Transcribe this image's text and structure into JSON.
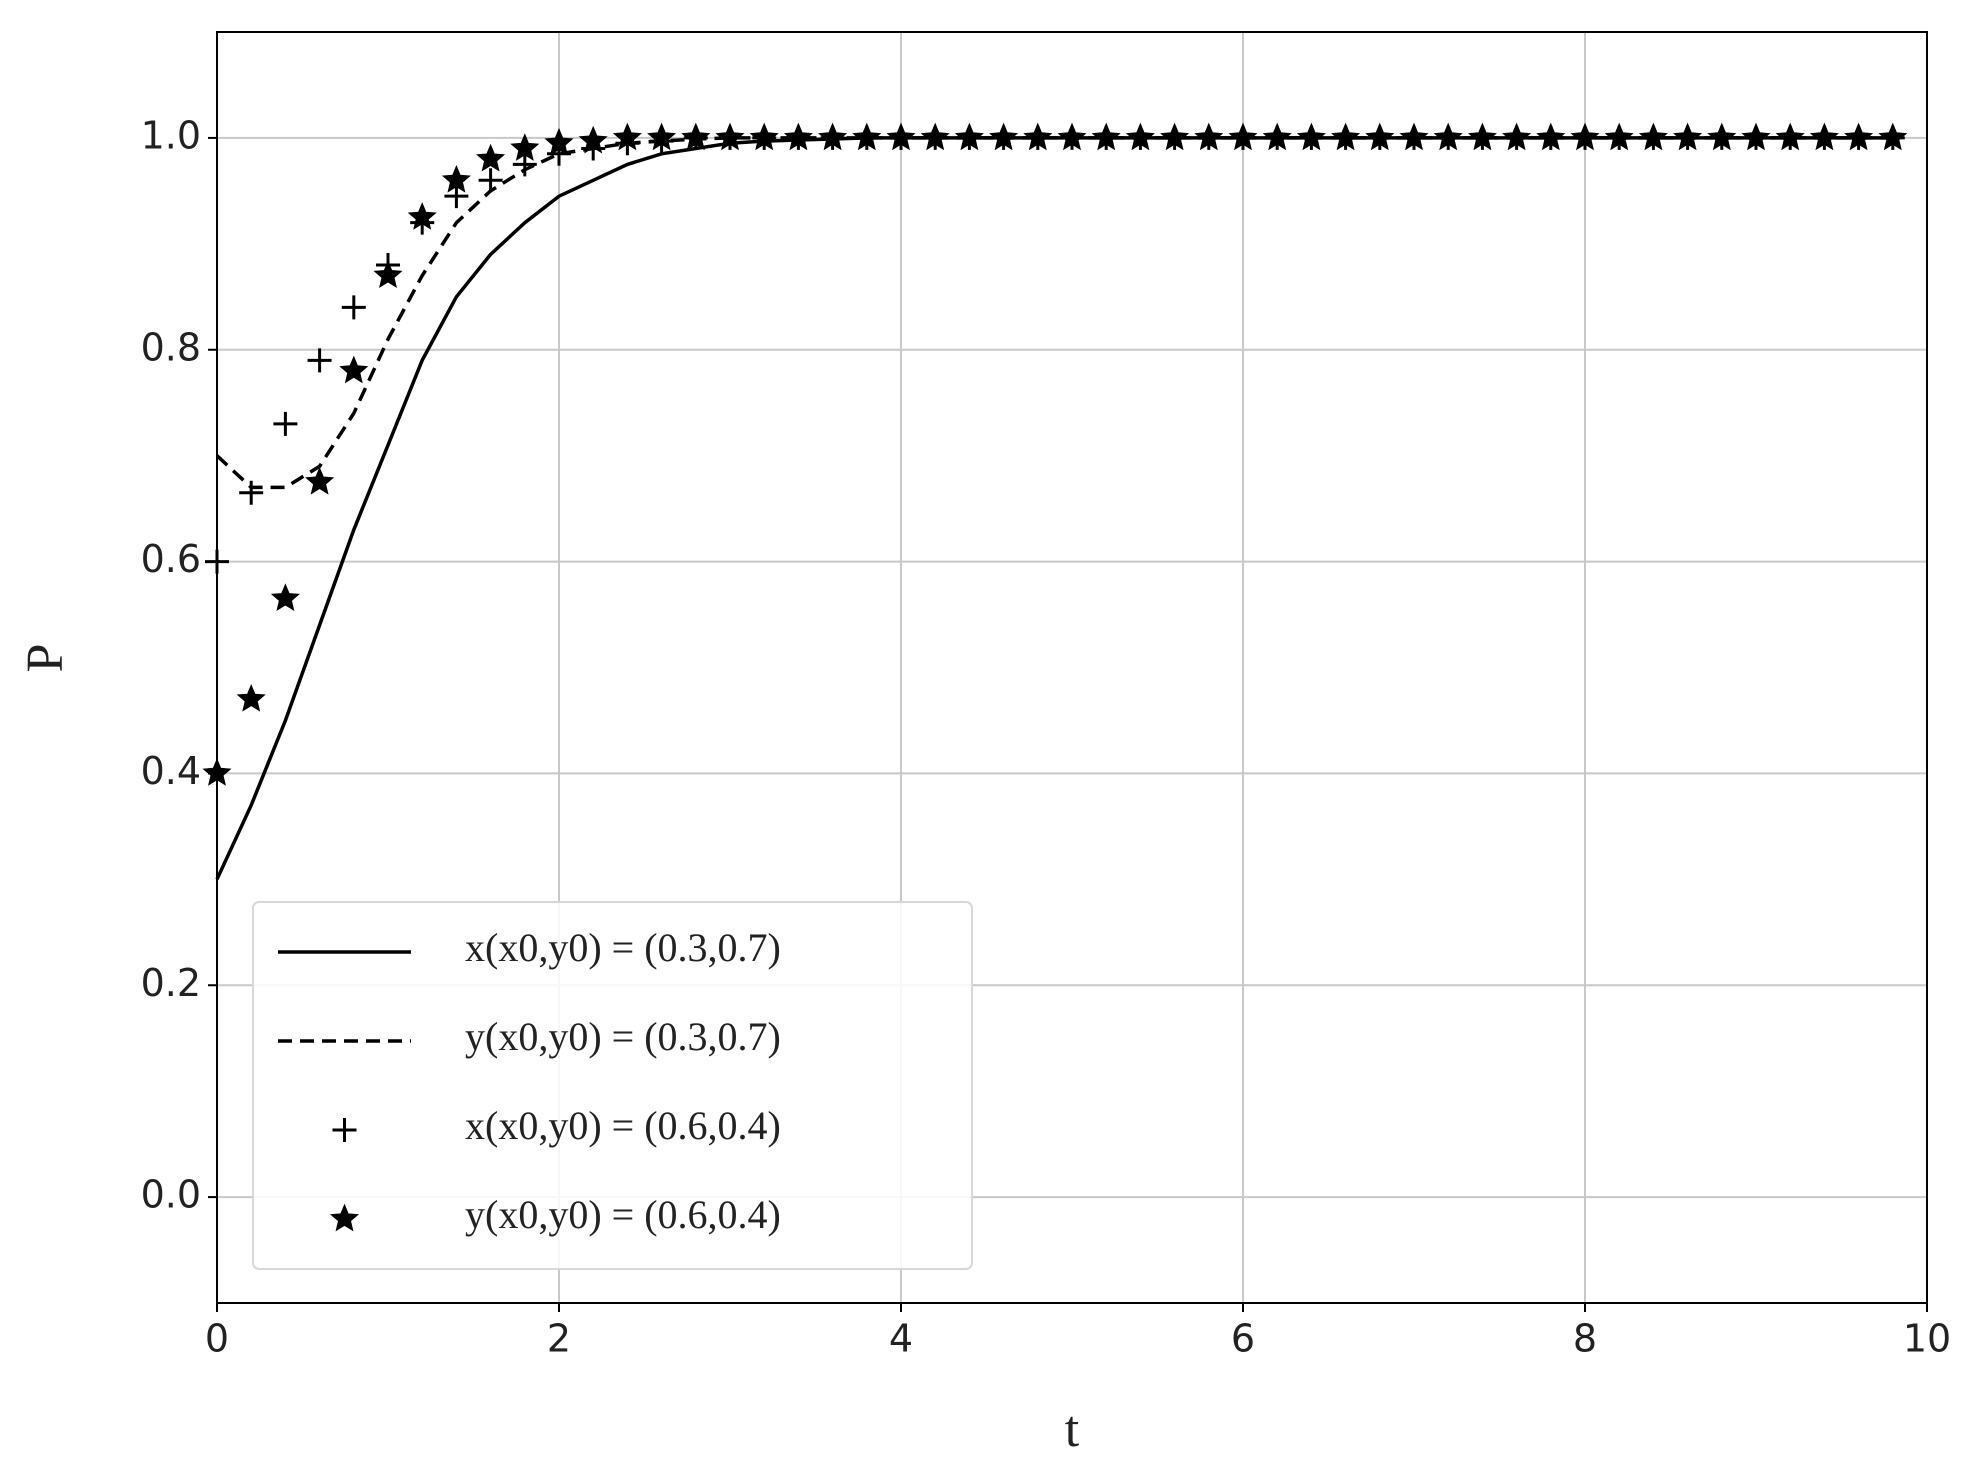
{
  "chart_data": {
    "type": "line",
    "x": [
      0,
      0.2,
      0.4,
      0.6,
      0.8,
      1,
      1.2,
      1.4,
      1.6,
      1.8,
      2,
      2.2,
      2.4,
      2.6,
      2.8,
      3,
      3.2,
      3.4,
      3.6,
      3.8,
      4,
      4.2,
      4.4,
      4.6,
      4.8,
      5,
      5.2,
      5.4,
      5.6,
      5.8,
      6,
      6.2,
      6.4,
      6.6,
      6.8,
      7,
      7.2,
      7.4,
      7.6,
      7.8,
      8,
      8.2,
      8.4,
      8.6,
      8.8,
      9,
      9.2,
      9.4,
      9.6,
      9.8
    ],
    "series": [
      {
        "name": "x(x0,y0) = (0.3,0.7)",
        "color": "#000000",
        "style": "solid",
        "values": [
          0.3,
          0.37,
          0.45,
          0.54,
          0.63,
          0.71,
          0.79,
          0.85,
          0.89,
          0.92,
          0.945,
          0.96,
          0.975,
          0.985,
          0.99,
          0.995,
          0.997,
          0.998,
          0.999,
          1,
          1,
          1,
          1,
          1,
          1,
          1,
          1,
          1,
          1,
          1,
          1,
          1,
          1,
          1,
          1,
          1,
          1,
          1,
          1,
          1,
          1,
          1,
          1,
          1,
          1,
          1,
          1,
          1,
          1,
          1
        ]
      },
      {
        "name": "y(x0,y0) = (0.3,0.7)",
        "color": "#000000",
        "style": "dashed",
        "values": [
          0.7,
          0.67,
          0.67,
          0.69,
          0.74,
          0.81,
          0.87,
          0.92,
          0.95,
          0.97,
          0.985,
          0.99,
          0.995,
          0.997,
          0.999,
          1,
          1,
          1,
          1,
          1,
          1,
          1,
          1,
          1,
          1,
          1,
          1,
          1,
          1,
          1,
          1,
          1,
          1,
          1,
          1,
          1,
          1,
          1,
          1,
          1,
          1,
          1,
          1,
          1,
          1,
          1,
          1,
          1,
          1,
          1
        ]
      },
      {
        "name": "x(x0,y0) = (0.6,0.4)",
        "color": "#000000",
        "style": "plus",
        "values": [
          0.6,
          0.665,
          0.73,
          0.79,
          0.84,
          0.88,
          0.92,
          0.945,
          0.96,
          0.975,
          0.985,
          0.99,
          0.995,
          0.997,
          1,
          1,
          1,
          1,
          1,
          1,
          1,
          1,
          1,
          1,
          1,
          1,
          1,
          1,
          1,
          1,
          1,
          1,
          1,
          1,
          1,
          1,
          1,
          1,
          1,
          1,
          1,
          1,
          1,
          1,
          1,
          1,
          1,
          1,
          1,
          1
        ]
      },
      {
        "name": "y(x0,y0) = (0.6,0.4)",
        "color": "#000000",
        "style": "star",
        "values": [
          0.4,
          0.47,
          0.565,
          0.675,
          0.78,
          0.87,
          0.925,
          0.96,
          0.98,
          0.99,
          0.995,
          0.997,
          1,
          1,
          1,
          1,
          1,
          1,
          1,
          1,
          1,
          1,
          1,
          1,
          1,
          1,
          1,
          1,
          1,
          1,
          1,
          1,
          1,
          1,
          1,
          1,
          1,
          1,
          1,
          1,
          1,
          1,
          1,
          1,
          1,
          1,
          1,
          1,
          1,
          1
        ]
      }
    ],
    "x_label": "t",
    "y_label": "P",
    "xlim": [
      0,
      10
    ],
    "ylim": [
      -0.1,
      1.1
    ],
    "xticks": [
      0,
      2,
      4,
      6,
      8,
      10
    ],
    "yticks": [
      {
        "value": 0,
        "label": "0.0"
      },
      0.2,
      0.4,
      0.6,
      0.8,
      {
        "value": 1,
        "label": "1.0"
      }
    ],
    "grid": true,
    "legend": "lower left"
  }
}
